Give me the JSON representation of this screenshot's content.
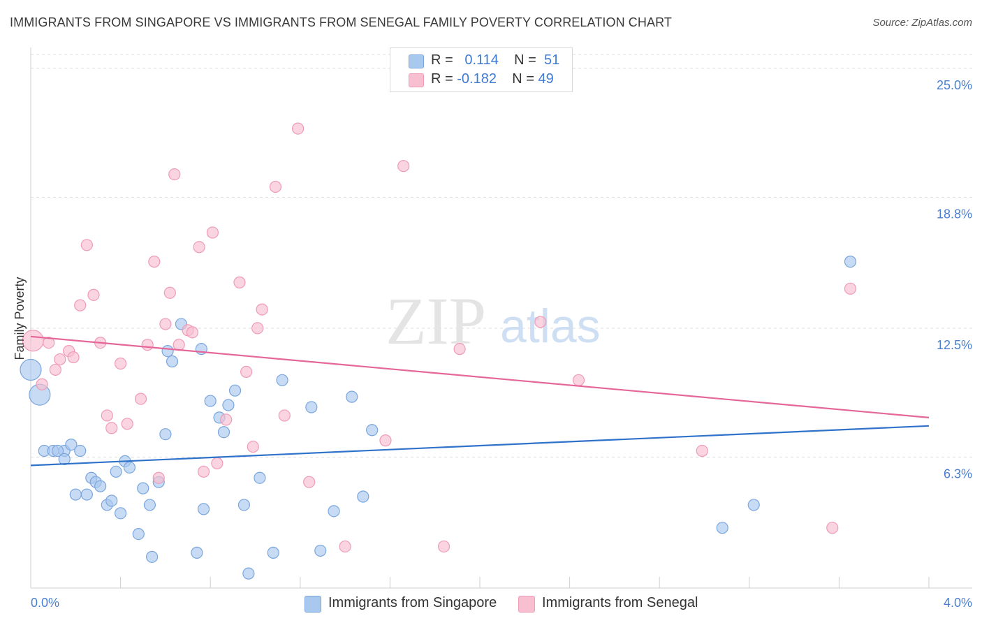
{
  "title": "IMMIGRANTS FROM SINGAPORE VS IMMIGRANTS FROM SENEGAL FAMILY POVERTY CORRELATION CHART",
  "source": "Source: ZipAtlas.com",
  "watermark": {
    "zip": "ZIP",
    "atlas": "atlas"
  },
  "colors": {
    "singapore_fill": "#a9c8ee",
    "singapore_stroke": "#7aa6dd",
    "singapore_line": "#2f72c9",
    "senegal_fill": "#f8bfd1",
    "senegal_stroke": "#ef9bb6",
    "senegal_line": "#e5679a",
    "tick_text": "#4a7fd0",
    "grid": "#dedede"
  },
  "legend": {
    "rows": [
      {
        "r_label": "R =",
        "r_value": "0.114",
        "n_label": "N =",
        "n_value": "51"
      },
      {
        "r_label": "R =",
        "r_value": "-0.182",
        "n_label": "N =",
        "n_value": "49"
      }
    ]
  },
  "chart_data": {
    "type": "scatter",
    "title": "IMMIGRANTS FROM SINGAPORE VS IMMIGRANTS FROM SENEGAL FAMILY POVERTY CORRELATION CHART",
    "xlabel": "",
    "ylabel": "Family Poverty",
    "xlim": [
      0,
      4.0
    ],
    "ylim": [
      0,
      26.0
    ],
    "x_tick_labels": [
      "0.0%",
      "4.0%"
    ],
    "y_ticks": [
      6.3,
      12.5,
      18.8,
      25.0
    ],
    "y_tick_labels": [
      "6.3%",
      "12.5%",
      "18.8%",
      "25.0%"
    ],
    "grid": true,
    "legend_position": "top-center",
    "series": [
      {
        "name": "Immigrants from Singapore",
        "r": 0.114,
        "n": 51,
        "trend": {
          "x": [
            0,
            4.0
          ],
          "y": [
            5.9,
            7.8
          ]
        },
        "points": [
          {
            "x": 0.0,
            "y": 10.5,
            "big": true
          },
          {
            "x": 0.04,
            "y": 9.3,
            "big": true
          },
          {
            "x": 0.06,
            "y": 6.6
          },
          {
            "x": 0.1,
            "y": 6.6
          },
          {
            "x": 0.15,
            "y": 6.6
          },
          {
            "x": 0.12,
            "y": 6.6
          },
          {
            "x": 0.18,
            "y": 6.9
          },
          {
            "x": 0.22,
            "y": 6.6
          },
          {
            "x": 0.15,
            "y": 6.2
          },
          {
            "x": 0.2,
            "y": 4.5
          },
          {
            "x": 0.25,
            "y": 4.5
          },
          {
            "x": 0.27,
            "y": 5.3
          },
          {
            "x": 0.29,
            "y": 5.1
          },
          {
            "x": 0.31,
            "y": 4.9
          },
          {
            "x": 0.34,
            "y": 4.0
          },
          {
            "x": 0.36,
            "y": 4.2
          },
          {
            "x": 0.38,
            "y": 5.6
          },
          {
            "x": 0.4,
            "y": 3.6
          },
          {
            "x": 0.42,
            "y": 6.1
          },
          {
            "x": 0.44,
            "y": 5.8
          },
          {
            "x": 0.48,
            "y": 2.6
          },
          {
            "x": 0.5,
            "y": 4.8
          },
          {
            "x": 0.53,
            "y": 4.0
          },
          {
            "x": 0.54,
            "y": 1.5
          },
          {
            "x": 0.57,
            "y": 5.1
          },
          {
            "x": 0.6,
            "y": 7.4
          },
          {
            "x": 0.61,
            "y": 11.4
          },
          {
            "x": 0.63,
            "y": 10.9
          },
          {
            "x": 0.67,
            "y": 12.7
          },
          {
            "x": 0.74,
            "y": 1.7
          },
          {
            "x": 0.76,
            "y": 11.5
          },
          {
            "x": 0.77,
            "y": 3.8
          },
          {
            "x": 0.8,
            "y": 9.0
          },
          {
            "x": 0.84,
            "y": 8.2
          },
          {
            "x": 0.86,
            "y": 7.5
          },
          {
            "x": 0.88,
            "y": 8.8
          },
          {
            "x": 0.91,
            "y": 9.5
          },
          {
            "x": 0.95,
            "y": 4.0
          },
          {
            "x": 0.97,
            "y": 0.7
          },
          {
            "x": 1.02,
            "y": 5.3
          },
          {
            "x": 1.08,
            "y": 1.7
          },
          {
            "x": 1.12,
            "y": 10.0
          },
          {
            "x": 1.25,
            "y": 8.7
          },
          {
            "x": 1.29,
            "y": 1.8
          },
          {
            "x": 1.35,
            "y": 3.7
          },
          {
            "x": 1.43,
            "y": 9.2
          },
          {
            "x": 1.48,
            "y": 4.4
          },
          {
            "x": 1.52,
            "y": 7.6
          },
          {
            "x": 3.08,
            "y": 2.9
          },
          {
            "x": 3.22,
            "y": 4.0
          },
          {
            "x": 3.65,
            "y": 15.7
          }
        ]
      },
      {
        "name": "Immigrants from Senegal",
        "r": -0.182,
        "n": 49,
        "trend": {
          "x": [
            0,
            4.0
          ],
          "y": [
            12.1,
            8.2
          ]
        },
        "points": [
          {
            "x": 0.01,
            "y": 11.9,
            "big": true
          },
          {
            "x": 0.05,
            "y": 9.8
          },
          {
            "x": 0.08,
            "y": 11.8
          },
          {
            "x": 0.11,
            "y": 10.5
          },
          {
            "x": 0.13,
            "y": 11.0
          },
          {
            "x": 0.17,
            "y": 11.4
          },
          {
            "x": 0.19,
            "y": 11.1
          },
          {
            "x": 0.22,
            "y": 13.6
          },
          {
            "x": 0.25,
            "y": 16.5
          },
          {
            "x": 0.28,
            "y": 14.1
          },
          {
            "x": 0.31,
            "y": 11.8
          },
          {
            "x": 0.34,
            "y": 8.3
          },
          {
            "x": 0.36,
            "y": 7.7
          },
          {
            "x": 0.4,
            "y": 10.8
          },
          {
            "x": 0.43,
            "y": 7.9
          },
          {
            "x": 0.49,
            "y": 9.1
          },
          {
            "x": 0.52,
            "y": 11.7
          },
          {
            "x": 0.55,
            "y": 15.7
          },
          {
            "x": 0.57,
            "y": 5.3
          },
          {
            "x": 0.6,
            "y": 12.7
          },
          {
            "x": 0.62,
            "y": 14.2
          },
          {
            "x": 0.64,
            "y": 19.9
          },
          {
            "x": 0.66,
            "y": 11.7
          },
          {
            "x": 0.7,
            "y": 12.4
          },
          {
            "x": 0.72,
            "y": 12.3
          },
          {
            "x": 0.75,
            "y": 16.4
          },
          {
            "x": 0.77,
            "y": 5.6
          },
          {
            "x": 0.81,
            "y": 17.1
          },
          {
            "x": 0.83,
            "y": 6.0
          },
          {
            "x": 0.87,
            "y": 8.1
          },
          {
            "x": 0.93,
            "y": 14.7
          },
          {
            "x": 0.96,
            "y": 10.4
          },
          {
            "x": 0.99,
            "y": 6.8
          },
          {
            "x": 1.01,
            "y": 12.5
          },
          {
            "x": 1.03,
            "y": 13.4
          },
          {
            "x": 1.09,
            "y": 19.3
          },
          {
            "x": 1.13,
            "y": 8.3
          },
          {
            "x": 1.19,
            "y": 22.1
          },
          {
            "x": 1.24,
            "y": 5.1
          },
          {
            "x": 1.4,
            "y": 2.0
          },
          {
            "x": 1.58,
            "y": 7.1
          },
          {
            "x": 1.66,
            "y": 20.3
          },
          {
            "x": 1.84,
            "y": 2.0
          },
          {
            "x": 1.91,
            "y": 11.5
          },
          {
            "x": 2.27,
            "y": 12.8
          },
          {
            "x": 2.44,
            "y": 10.0
          },
          {
            "x": 2.99,
            "y": 6.6
          },
          {
            "x": 3.57,
            "y": 2.9
          },
          {
            "x": 3.65,
            "y": 14.4
          }
        ]
      }
    ]
  }
}
